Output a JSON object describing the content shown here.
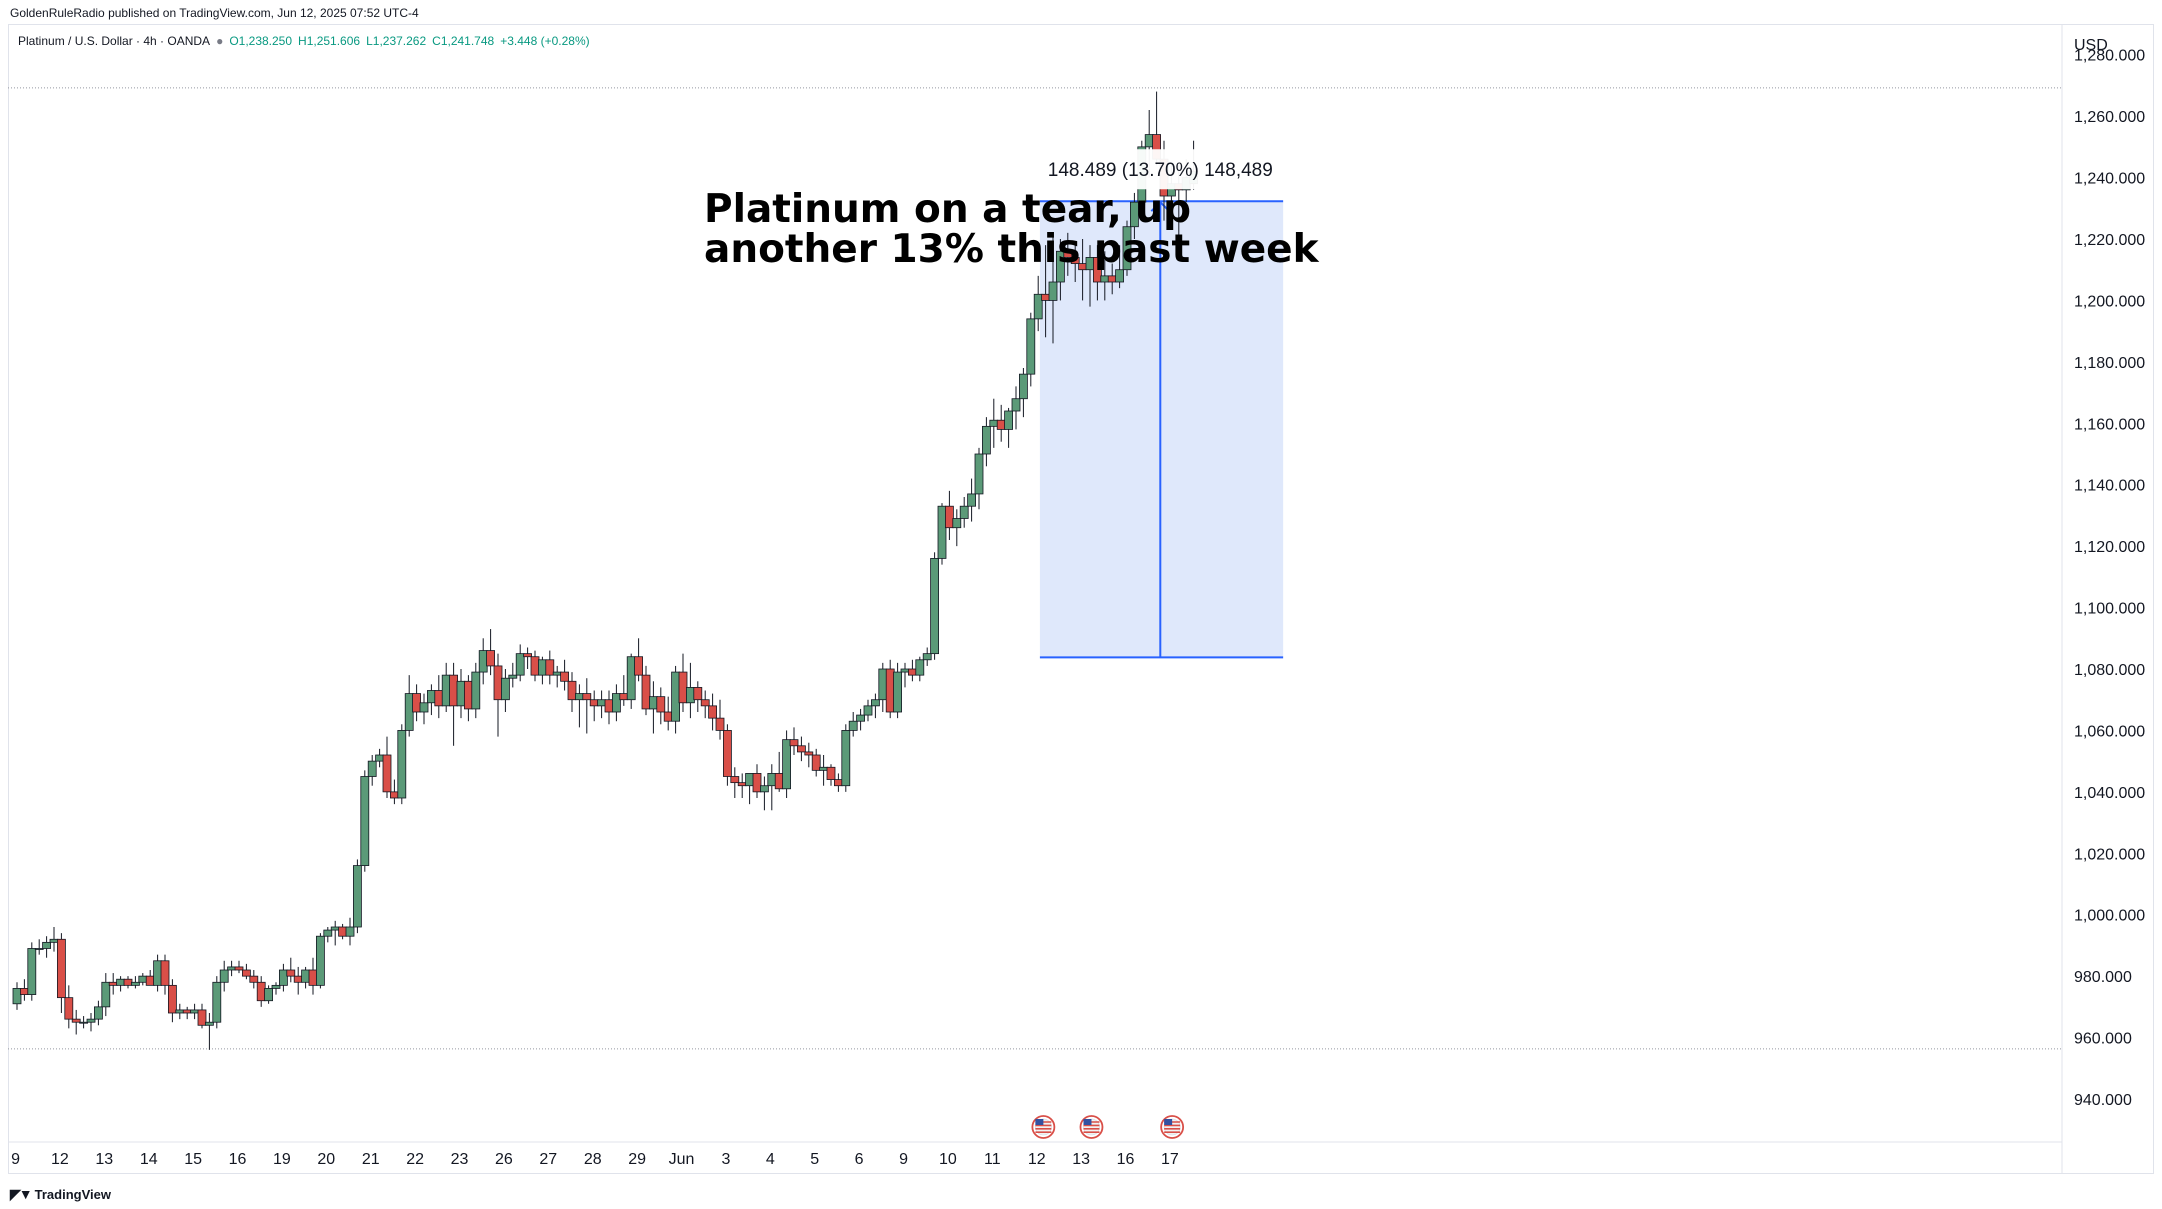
{
  "header": {
    "publisher": "GoldenRuleRadio published on TradingView.com, Jun 12, 2025 07:52 UTC-4"
  },
  "legend": {
    "symbol": "Platinum / U.S. Dollar · 4h · OANDA",
    "open": "O1,238.250",
    "high": "H1,251.606",
    "low": "L1,237.262",
    "close": "C1,241.748",
    "change": "+3.448 (+0.28%)"
  },
  "footer": {
    "brand": "TradingView"
  },
  "colors": {
    "up": "#5b9a78",
    "down": "#d94f48",
    "measure_fill": "#dce6fb",
    "measure_line": "#2962ff"
  },
  "chart_data": {
    "type": "candlestick",
    "currency": "USD",
    "annotation": [
      "Platinum on a tear, up",
      "another 13% this past week"
    ],
    "measure": {
      "label": "148.489 (13.70%) 148,489",
      "from": 1083.8,
      "to": 1232.3
    },
    "reference_lines": [
      1269.2,
      956.3
    ],
    "ylim": [
      926,
      1290
    ],
    "y_ticks": [
      {
        "v": 1280,
        "label": "1,280.000"
      },
      {
        "v": 1260,
        "label": "1,260.000"
      },
      {
        "v": 1240,
        "label": "1,240.000"
      },
      {
        "v": 1220,
        "label": "1,220.000"
      },
      {
        "v": 1200,
        "label": "1,200.000"
      },
      {
        "v": 1180,
        "label": "1,180.000"
      },
      {
        "v": 1160,
        "label": "1,160.000"
      },
      {
        "v": 1140,
        "label": "1,140.000"
      },
      {
        "v": 1120,
        "label": "1,120.000"
      },
      {
        "v": 1100,
        "label": "1,100.000"
      },
      {
        "v": 1080,
        "label": "1,080.000"
      },
      {
        "v": 1060,
        "label": "1,060.000"
      },
      {
        "v": 1040,
        "label": "1,040.000"
      },
      {
        "v": 1020,
        "label": "1,020.000"
      },
      {
        "v": 1000,
        "label": "1,000.000"
      },
      {
        "v": 980,
        "label": "980.000"
      },
      {
        "v": 960,
        "label": "960.000"
      },
      {
        "v": 940,
        "label": "940.000"
      }
    ],
    "x_ticks": [
      {
        "i": -0.2,
        "label": "9"
      },
      {
        "i": 5.8,
        "label": "12"
      },
      {
        "i": 11.8,
        "label": "13"
      },
      {
        "i": 17.8,
        "label": "14"
      },
      {
        "i": 23.8,
        "label": "15"
      },
      {
        "i": 29.8,
        "label": "16"
      },
      {
        "i": 35.8,
        "label": "19"
      },
      {
        "i": 41.8,
        "label": "20"
      },
      {
        "i": 47.8,
        "label": "21"
      },
      {
        "i": 53.8,
        "label": "22"
      },
      {
        "i": 59.8,
        "label": "23"
      },
      {
        "i": 65.8,
        "label": "26"
      },
      {
        "i": 71.8,
        "label": "27"
      },
      {
        "i": 77.8,
        "label": "28"
      },
      {
        "i": 83.8,
        "label": "29"
      },
      {
        "i": 89.8,
        "label": "Jun"
      },
      {
        "i": 95.8,
        "label": "3"
      },
      {
        "i": 101.8,
        "label": "4"
      },
      {
        "i": 107.8,
        "label": "5"
      },
      {
        "i": 113.8,
        "label": "6"
      },
      {
        "i": 119.8,
        "label": "9"
      },
      {
        "i": 125.8,
        "label": "10"
      },
      {
        "i": 131.8,
        "label": "11"
      },
      {
        "i": 137.8,
        "label": "12"
      },
      {
        "i": 143.8,
        "label": "13"
      },
      {
        "i": 149.8,
        "label": "16"
      },
      {
        "i": 155.8,
        "label": "17"
      }
    ],
    "events": [
      138.7,
      145.2,
      156.1
    ],
    "candles": [
      [
        971,
        978,
        969,
        976
      ],
      [
        976,
        979,
        972,
        974
      ],
      [
        974,
        991,
        972,
        989
      ],
      [
        989,
        992,
        987,
        989
      ],
      [
        989,
        993,
        986,
        991
      ],
      [
        991,
        996,
        988,
        992
      ],
      [
        992,
        994,
        968,
        973
      ],
      [
        973,
        977,
        963,
        966
      ],
      [
        966,
        969,
        961,
        965
      ],
      [
        965,
        967,
        963,
        965
      ],
      [
        965,
        968,
        962,
        966
      ],
      [
        966,
        972,
        964,
        970
      ],
      [
        970,
        981,
        967,
        978
      ],
      [
        978,
        981,
        974,
        977
      ],
      [
        977,
        980,
        975,
        979
      ],
      [
        979,
        980,
        976,
        977
      ],
      [
        977,
        980,
        976,
        978
      ],
      [
        978,
        981,
        977,
        980
      ],
      [
        980,
        982,
        977,
        977
      ],
      [
        977,
        987,
        975,
        985
      ],
      [
        985,
        987,
        974,
        977
      ],
      [
        977,
        979,
        965,
        968
      ],
      [
        968,
        971,
        966,
        969
      ],
      [
        969,
        970,
        966,
        968
      ],
      [
        968,
        971,
        966,
        969
      ],
      [
        969,
        971,
        963,
        964
      ],
      [
        964,
        968,
        956,
        965
      ],
      [
        965,
        980,
        963,
        978
      ],
      [
        978,
        985,
        975,
        982
      ],
      [
        982,
        985,
        980,
        983
      ],
      [
        983,
        985,
        981,
        982
      ],
      [
        982,
        984,
        979,
        980
      ],
      [
        980,
        982,
        976,
        978
      ],
      [
        978,
        980,
        970,
        972
      ],
      [
        972,
        977,
        971,
        976
      ],
      [
        976,
        978,
        974,
        977
      ],
      [
        977,
        984,
        975,
        982
      ],
      [
        982,
        986,
        978,
        980
      ],
      [
        980,
        983,
        974,
        978
      ],
      [
        978,
        983,
        976,
        982
      ],
      [
        982,
        986,
        974,
        977
      ],
      [
        977,
        994,
        976,
        993
      ],
      [
        993,
        996,
        991,
        995
      ],
      [
        995,
        998,
        990,
        996
      ],
      [
        996,
        997,
        992,
        993
      ],
      [
        993,
        999,
        990,
        996
      ],
      [
        996,
        1018,
        994,
        1016
      ],
      [
        1016,
        1047,
        1014,
        1045
      ],
      [
        1045,
        1052,
        1042,
        1050
      ],
      [
        1050,
        1054,
        1048,
        1052
      ],
      [
        1052,
        1058,
        1038,
        1040
      ],
      [
        1040,
        1044,
        1036,
        1038
      ],
      [
        1038,
        1062,
        1036,
        1060
      ],
      [
        1060,
        1078,
        1058,
        1072
      ],
      [
        1072,
        1075,
        1063,
        1066
      ],
      [
        1066,
        1072,
        1062,
        1069
      ],
      [
        1069,
        1075,
        1065,
        1073
      ],
      [
        1073,
        1078,
        1064,
        1068
      ],
      [
        1068,
        1082,
        1066,
        1078
      ],
      [
        1078,
        1082,
        1055,
        1068
      ],
      [
        1068,
        1080,
        1064,
        1076
      ],
      [
        1076,
        1078,
        1063,
        1067
      ],
      [
        1067,
        1082,
        1064,
        1079
      ],
      [
        1079,
        1090,
        1075,
        1086
      ],
      [
        1086,
        1093,
        1078,
        1081
      ],
      [
        1081,
        1085,
        1058,
        1070
      ],
      [
        1070,
        1080,
        1066,
        1077
      ],
      [
        1077,
        1082,
        1074,
        1078
      ],
      [
        1078,
        1088,
        1076,
        1085
      ],
      [
        1085,
        1087,
        1080,
        1084
      ],
      [
        1084,
        1086,
        1076,
        1078
      ],
      [
        1078,
        1084,
        1075,
        1083
      ],
      [
        1083,
        1086,
        1075,
        1078
      ],
      [
        1078,
        1081,
        1074,
        1079
      ],
      [
        1079,
        1083,
        1073,
        1076
      ],
      [
        1076,
        1079,
        1066,
        1070
      ],
      [
        1070,
        1075,
        1061,
        1072
      ],
      [
        1072,
        1077,
        1059,
        1070
      ],
      [
        1070,
        1073,
        1063,
        1068
      ],
      [
        1068,
        1073,
        1064,
        1070
      ],
      [
        1070,
        1073,
        1062,
        1066
      ],
      [
        1066,
        1075,
        1063,
        1072
      ],
      [
        1072,
        1078,
        1068,
        1070
      ],
      [
        1070,
        1085,
        1067,
        1084
      ],
      [
        1084,
        1090,
        1076,
        1078
      ],
      [
        1078,
        1081,
        1065,
        1067
      ],
      [
        1067,
        1076,
        1059,
        1071
      ],
      [
        1071,
        1074,
        1062,
        1066
      ],
      [
        1066,
        1071,
        1060,
        1063
      ],
      [
        1063,
        1081,
        1059,
        1079
      ],
      [
        1079,
        1085,
        1066,
        1069
      ],
      [
        1069,
        1082,
        1064,
        1074
      ],
      [
        1074,
        1076,
        1066,
        1070
      ],
      [
        1070,
        1073,
        1064,
        1068
      ],
      [
        1068,
        1072,
        1060,
        1064
      ],
      [
        1064,
        1070,
        1057,
        1060
      ],
      [
        1060,
        1062,
        1042,
        1045
      ],
      [
        1045,
        1048,
        1038,
        1043
      ],
      [
        1043,
        1046,
        1038,
        1042
      ],
      [
        1042,
        1046,
        1036,
        1046
      ],
      [
        1046,
        1049,
        1038,
        1040
      ],
      [
        1040,
        1045,
        1034,
        1042
      ],
      [
        1042,
        1049,
        1034,
        1046
      ],
      [
        1046,
        1053,
        1040,
        1041
      ],
      [
        1041,
        1060,
        1038,
        1057
      ],
      [
        1057,
        1061,
        1052,
        1055
      ],
      [
        1055,
        1058,
        1050,
        1053
      ],
      [
        1053,
        1056,
        1048,
        1052
      ],
      [
        1052,
        1054,
        1045,
        1047
      ],
      [
        1047,
        1052,
        1042,
        1048
      ],
      [
        1048,
        1049,
        1042,
        1044
      ],
      [
        1044,
        1046,
        1040,
        1042
      ],
      [
        1042,
        1062,
        1040,
        1060
      ],
      [
        1060,
        1066,
        1058,
        1063
      ],
      [
        1063,
        1067,
        1060,
        1065
      ],
      [
        1065,
        1070,
        1063,
        1068
      ],
      [
        1068,
        1072,
        1064,
        1070
      ],
      [
        1070,
        1082,
        1066,
        1080
      ],
      [
        1080,
        1083,
        1064,
        1066
      ],
      [
        1066,
        1082,
        1064,
        1079
      ],
      [
        1079,
        1082,
        1074,
        1080
      ],
      [
        1080,
        1083,
        1076,
        1078
      ],
      [
        1078,
        1084,
        1076,
        1083
      ],
      [
        1083,
        1087,
        1081,
        1085
      ],
      [
        1085,
        1118,
        1083,
        1116
      ],
      [
        1116,
        1134,
        1114,
        1133
      ],
      [
        1133,
        1138,
        1122,
        1126
      ],
      [
        1126,
        1132,
        1120,
        1129
      ],
      [
        1129,
        1136,
        1126,
        1133
      ],
      [
        1133,
        1142,
        1128,
        1137
      ],
      [
        1137,
        1152,
        1132,
        1150
      ],
      [
        1150,
        1162,
        1146,
        1159
      ],
      [
        1159,
        1168,
        1152,
        1161
      ],
      [
        1161,
        1166,
        1154,
        1158
      ],
      [
        1158,
        1165,
        1152,
        1164
      ],
      [
        1164,
        1172,
        1158,
        1168
      ],
      [
        1168,
        1178,
        1162,
        1176
      ],
      [
        1176,
        1196,
        1172,
        1194
      ],
      [
        1194,
        1208,
        1190,
        1202
      ],
      [
        1202,
        1218,
        1188,
        1200
      ],
      [
        1200,
        1222,
        1186,
        1206
      ],
      [
        1206,
        1220,
        1200,
        1216
      ],
      [
        1216,
        1222,
        1208,
        1214
      ],
      [
        1214,
        1219,
        1206,
        1212
      ],
      [
        1212,
        1220,
        1200,
        1210
      ],
      [
        1210,
        1218,
        1198,
        1214
      ],
      [
        1214,
        1218,
        1200,
        1206
      ],
      [
        1206,
        1216,
        1200,
        1208
      ],
      [
        1208,
        1212,
        1202,
        1206
      ],
      [
        1206,
        1218,
        1204,
        1210
      ],
      [
        1210,
        1226,
        1208,
        1224
      ],
      [
        1224,
        1235,
        1220,
        1232
      ],
      [
        1232,
        1252,
        1228,
        1250
      ],
      [
        1250,
        1262,
        1240,
        1254
      ],
      [
        1254,
        1268,
        1244,
        1246
      ],
      [
        1246,
        1252,
        1226,
        1234
      ],
      [
        1234,
        1244,
        1228,
        1238
      ],
      [
        1238,
        1244,
        1218,
        1236
      ],
      [
        1236,
        1246,
        1232,
        1240
      ],
      [
        1238,
        1252,
        1236,
        1242
      ]
    ]
  }
}
